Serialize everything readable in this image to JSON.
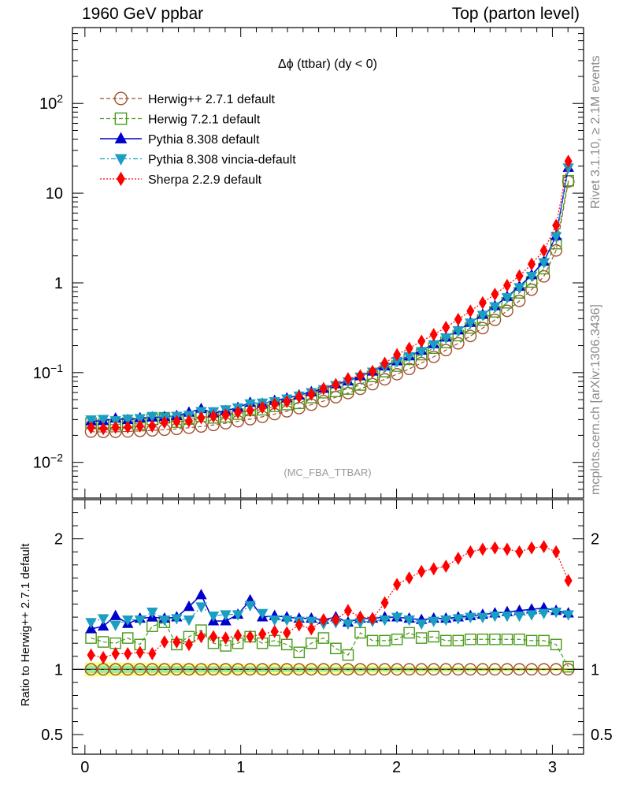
{
  "header": {
    "left": "1960 GeV ppbar",
    "right": "Top (parton level)"
  },
  "side_labels": {
    "rivet": "Rivet 3.1.10, ≥ 2.1M events",
    "mcplots": "mcplots.cern.ch [arXiv:1306.3436]"
  },
  "chart_data": {
    "type": "line",
    "title": "Δϕ (ttbar) (dy < 0)",
    "watermark": "(MC_FBA_TTBAR)",
    "xlabel": "",
    "ylabel_main": "",
    "ylabel_ratio": "Ratio to Herwig++ 2.7.1 default",
    "xlim": [
      -0.08,
      3.2
    ],
    "main_ylim": [
      0.004,
      700
    ],
    "main_yscale": "log",
    "ratio_ylim": [
      0.35,
      2.3
    ],
    "x_ticks": [
      "0",
      "1",
      "2",
      "3"
    ],
    "main_y_ticks": [
      "10^-2",
      "10^-1",
      "1",
      "10",
      "10^2"
    ],
    "ratio_y_ticks": [
      "0.5",
      "1",
      "2"
    ],
    "legend_position": "top-left",
    "reference_band_colors": [
      "#ffff7f",
      "#99ee99"
    ],
    "x": [
      0.0393,
      0.1178,
      0.1963,
      0.2749,
      0.3534,
      0.432,
      0.5105,
      0.589,
      0.6676,
      0.7461,
      0.8247,
      0.9032,
      0.9817,
      1.0603,
      1.1388,
      1.2174,
      1.2959,
      1.3744,
      1.453,
      1.5315,
      1.6101,
      1.6886,
      1.7671,
      1.8457,
      1.9242,
      2.0028,
      2.0813,
      2.1598,
      2.2384,
      2.3169,
      2.3955,
      2.474,
      2.5525,
      2.6311,
      2.7096,
      2.7882,
      2.8667,
      2.9452,
      3.0238,
      3.1023
    ],
    "series": [
      {
        "name": "Herwig++ 2.7.1 default",
        "color": "#a0522d",
        "marker": "open-circle",
        "line": "dashed",
        "values": [
          0.022,
          0.0218,
          0.0219,
          0.0221,
          0.0224,
          0.0227,
          0.0231,
          0.0236,
          0.0243,
          0.0251,
          0.0261,
          0.0273,
          0.0287,
          0.0303,
          0.0322,
          0.0345,
          0.0371,
          0.0402,
          0.0439,
          0.0482,
          0.0532,
          0.0591,
          0.066,
          0.0743,
          0.0842,
          0.096,
          0.11,
          0.128,
          0.15,
          0.178,
          0.212,
          0.256,
          0.313,
          0.387,
          0.488,
          0.63,
          0.84,
          1.18,
          2.3,
          13.5
        ],
        "ratio": [
          1,
          1,
          1,
          1,
          1,
          1,
          1,
          1,
          1,
          1,
          1,
          1,
          1,
          1,
          1,
          1,
          1,
          1,
          1,
          1,
          1,
          1,
          1,
          1,
          1,
          1,
          1,
          1,
          1,
          1,
          1,
          1,
          1,
          1,
          1,
          1,
          1,
          1,
          1,
          1
        ]
      },
      {
        "name": "Herwig 7.2.1 default",
        "color": "#4a9a1a",
        "marker": "open-square",
        "line": "dashed",
        "values": [
          0.0273,
          0.0264,
          0.0263,
          0.0274,
          0.0267,
          0.0302,
          0.0314,
          0.0281,
          0.0304,
          0.0326,
          0.0313,
          0.0322,
          0.0345,
          0.0379,
          0.0386,
          0.0421,
          0.0441,
          0.0455,
          0.0527,
          0.0597,
          0.0618,
          0.0657,
          0.0729,
          0.0907,
          0.1027,
          0.1183,
          0.1408,
          0.1587,
          0.1875,
          0.2172,
          0.2586,
          0.3149,
          0.385,
          0.476,
          0.6003,
          0.7749,
          1.0248,
          1.4396,
          2.737,
          13.77
        ],
        "ratio": [
          1.24,
          1.21,
          1.2,
          1.24,
          1.19,
          1.33,
          1.36,
          1.19,
          1.25,
          1.3,
          1.2,
          1.18,
          1.2,
          1.25,
          1.2,
          1.22,
          1.19,
          1.13,
          1.2,
          1.24,
          1.16,
          1.11,
          1.28,
          1.22,
          1.22,
          1.23,
          1.28,
          1.24,
          1.25,
          1.22,
          1.22,
          1.23,
          1.23,
          1.23,
          1.23,
          1.23,
          1.22,
          1.22,
          1.19,
          1.02
        ]
      },
      {
        "name": "Pythia 8.308 default",
        "color": "#0000cc",
        "marker": "filled-triangle-up",
        "line": "solid",
        "values": [
          0.0288,
          0.029,
          0.0309,
          0.0298,
          0.0312,
          0.0318,
          0.0321,
          0.033,
          0.036,
          0.0395,
          0.0356,
          0.0375,
          0.0408,
          0.0464,
          0.0451,
          0.0487,
          0.0519,
          0.0559,
          0.061,
          0.0665,
          0.0745,
          0.0803,
          0.0917,
          0.1033,
          0.1179,
          0.1344,
          0.1529,
          0.1765,
          0.2084,
          0.2474,
          0.2968,
          0.3609,
          0.4444,
          0.5534,
          0.7028,
          0.9135,
          1.2264,
          1.7346,
          3.335,
          19.31
        ],
        "ratio": [
          1.31,
          1.33,
          1.41,
          1.35,
          1.39,
          1.4,
          1.39,
          1.4,
          1.48,
          1.57,
          1.37,
          1.37,
          1.42,
          1.53,
          1.4,
          1.41,
          1.4,
          1.39,
          1.39,
          1.38,
          1.4,
          1.36,
          1.39,
          1.39,
          1.4,
          1.4,
          1.39,
          1.38,
          1.39,
          1.39,
          1.4,
          1.41,
          1.42,
          1.43,
          1.44,
          1.45,
          1.46,
          1.47,
          1.45,
          1.43
        ]
      },
      {
        "name": "Pythia 8.308 vincia-default",
        "color": "#1a9ec2",
        "marker": "filled-triangle-down",
        "line": "dashdot",
        "values": [
          0.0299,
          0.0303,
          0.0293,
          0.0305,
          0.0309,
          0.0327,
          0.0319,
          0.0328,
          0.0336,
          0.0371,
          0.0369,
          0.0388,
          0.0407,
          0.0451,
          0.0461,
          0.0477,
          0.0511,
          0.0551,
          0.0602,
          0.0651,
          0.0723,
          0.0795,
          0.0897,
          0.1018,
          0.1162,
          0.1344,
          0.1518,
          0.1727,
          0.2055,
          0.2456,
          0.2947,
          0.3584,
          0.4382,
          0.5457,
          0.6881,
          0.8883,
          1.1928,
          1.6874,
          3.312,
          19.2
        ],
        "ratio": [
          1.36,
          1.39,
          1.34,
          1.38,
          1.38,
          1.44,
          1.38,
          1.39,
          1.38,
          1.48,
          1.41,
          1.42,
          1.42,
          1.49,
          1.43,
          1.38,
          1.38,
          1.37,
          1.37,
          1.35,
          1.36,
          1.35,
          1.36,
          1.37,
          1.38,
          1.4,
          1.38,
          1.35,
          1.37,
          1.38,
          1.39,
          1.4,
          1.4,
          1.41,
          1.41,
          1.41,
          1.42,
          1.43,
          1.44,
          1.42
        ]
      },
      {
        "name": "Sherpa 2.2.9 default",
        "color": "#ff0000",
        "marker": "filled-diamond",
        "line": "dotted",
        "values": [
          0.0244,
          0.0237,
          0.0245,
          0.0247,
          0.0254,
          0.0254,
          0.0279,
          0.0286,
          0.0289,
          0.0314,
          0.0326,
          0.0338,
          0.0362,
          0.0379,
          0.0409,
          0.0445,
          0.0475,
          0.0539,
          0.0575,
          0.0665,
          0.0735,
          0.0856,
          0.0924,
          0.1033,
          0.1273,
          0.1584,
          0.187,
          0.224,
          0.2655,
          0.319,
          0.3922,
          0.4864,
          0.601,
          0.7469,
          0.937,
          1.197,
          1.6212,
          2.2892,
          4.37,
          22.68
        ],
        "ratio": [
          1.11,
          1.09,
          1.12,
          1.12,
          1.13,
          1.12,
          1.21,
          1.21,
          1.19,
          1.25,
          1.25,
          1.24,
          1.26,
          1.25,
          1.27,
          1.29,
          1.28,
          1.34,
          1.31,
          1.38,
          1.38,
          1.45,
          1.4,
          1.39,
          1.51,
          1.65,
          1.7,
          1.75,
          1.77,
          1.79,
          1.85,
          1.9,
          1.92,
          1.93,
          1.92,
          1.9,
          1.93,
          1.94,
          1.9,
          1.68
        ]
      }
    ]
  }
}
